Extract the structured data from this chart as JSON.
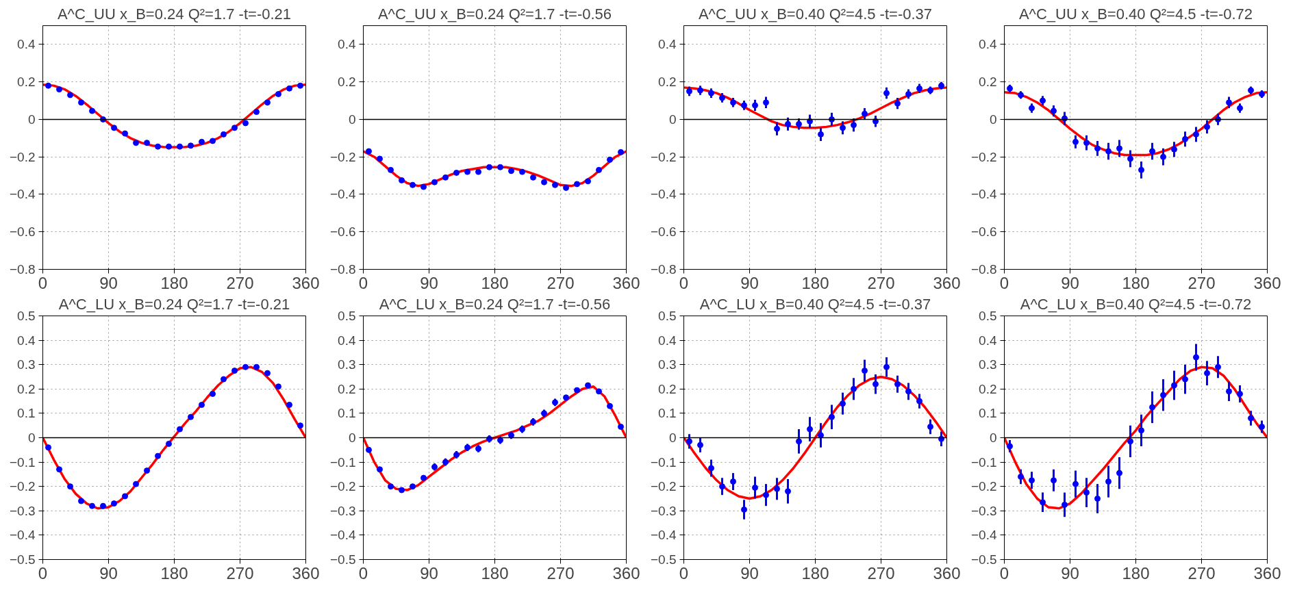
{
  "chart_data": [
    {
      "type": "scatter",
      "title": "A^C_UU x_B=0.24 Q²=1.7 -t=-0.21",
      "xlim": [
        0,
        360
      ],
      "ylim": [
        -0.8,
        0.5
      ],
      "xticks": [
        0,
        90,
        180,
        270,
        360
      ],
      "yticks": [
        -0.8,
        -0.6,
        -0.4,
        -0.2,
        0,
        0.2,
        0.4
      ],
      "grid": true,
      "marker": "circle",
      "line_style": "solid",
      "ref_lines": [
        {
          "axis": "y",
          "value": 0,
          "color": "#000000"
        }
      ],
      "series": [
        {
          "type": "scatter",
          "color": "#0000ff",
          "x": [
            7.5,
            22.5,
            37.5,
            52.5,
            67.5,
            82.5,
            97.5,
            112.5,
            127.5,
            142.5,
            157.5,
            172.5,
            187.5,
            202.5,
            217.5,
            232.5,
            247.5,
            262.5,
            277.5,
            292.5,
            307.5,
            322.5,
            337.5,
            352.5
          ],
          "values": [
            0.18,
            0.16,
            0.13,
            0.09,
            0.045,
            0.0,
            -0.045,
            -0.075,
            -0.125,
            -0.125,
            -0.145,
            -0.145,
            -0.145,
            -0.14,
            -0.12,
            -0.115,
            -0.08,
            -0.045,
            -0.02,
            0.04,
            0.09,
            0.135,
            0.165,
            0.18
          ],
          "errors": [
            0.005,
            0.005,
            0.005,
            0.005,
            0.005,
            0.005,
            0.005,
            0.005,
            0.005,
            0.005,
            0.005,
            0.005,
            0.005,
            0.005,
            0.005,
            0.005,
            0.005,
            0.005,
            0.005,
            0.005,
            0.005,
            0.005,
            0.005,
            0.005
          ]
        },
        {
          "type": "line",
          "color": "#ff0000",
          "x": [
            0,
            15,
            30,
            45,
            60,
            75,
            90,
            105,
            120,
            135,
            150,
            165,
            180,
            195,
            210,
            225,
            240,
            255,
            270,
            285,
            300,
            315,
            330,
            345,
            360
          ],
          "marker": "none",
          "values": [
            0.185,
            0.18,
            0.16,
            0.125,
            0.08,
            0.03,
            -0.02,
            -0.065,
            -0.1,
            -0.125,
            -0.14,
            -0.147,
            -0.148,
            -0.147,
            -0.14,
            -0.125,
            -0.1,
            -0.065,
            -0.02,
            0.03,
            0.08,
            0.125,
            0.16,
            0.18,
            0.185
          ]
        }
      ]
    },
    {
      "type": "scatter",
      "title": "A^C_UU x_B=0.24 Q²=1.7 -t=-0.56",
      "xlim": [
        0,
        360
      ],
      "ylim": [
        -0.8,
        0.5
      ],
      "xticks": [
        0,
        90,
        180,
        270,
        360
      ],
      "yticks": [
        -0.8,
        -0.6,
        -0.4,
        -0.2,
        0,
        0.2,
        0.4
      ],
      "grid": true,
      "marker": "circle",
      "line_style": "solid",
      "ref_lines": [
        {
          "axis": "y",
          "value": 0,
          "color": "#000000"
        }
      ],
      "series": [
        {
          "type": "scatter",
          "color": "#0000ff",
          "x": [
            7.5,
            22.5,
            37.5,
            52.5,
            67.5,
            82.5,
            97.5,
            112.5,
            127.5,
            142.5,
            157.5,
            172.5,
            187.5,
            202.5,
            217.5,
            232.5,
            247.5,
            262.5,
            277.5,
            292.5,
            307.5,
            322.5,
            337.5,
            352.5
          ],
          "values": [
            -0.17,
            -0.21,
            -0.27,
            -0.325,
            -0.35,
            -0.36,
            -0.335,
            -0.31,
            -0.285,
            -0.28,
            -0.28,
            -0.255,
            -0.255,
            -0.275,
            -0.28,
            -0.31,
            -0.335,
            -0.35,
            -0.365,
            -0.345,
            -0.33,
            -0.27,
            -0.215,
            -0.175
          ],
          "errors": [
            0.005,
            0.005,
            0.005,
            0.005,
            0.005,
            0.005,
            0.005,
            0.005,
            0.005,
            0.005,
            0.005,
            0.005,
            0.005,
            0.005,
            0.005,
            0.005,
            0.005,
            0.005,
            0.005,
            0.005,
            0.005,
            0.005,
            0.005,
            0.005
          ]
        },
        {
          "type": "line",
          "color": "#ff0000",
          "x": [
            0,
            15,
            30,
            45,
            60,
            75,
            90,
            105,
            120,
            135,
            150,
            165,
            180,
            195,
            210,
            225,
            240,
            255,
            270,
            285,
            300,
            315,
            330,
            345,
            360
          ],
          "marker": "none",
          "values": [
            -0.17,
            -0.2,
            -0.25,
            -0.3,
            -0.34,
            -0.355,
            -0.345,
            -0.32,
            -0.295,
            -0.275,
            -0.265,
            -0.255,
            -0.255,
            -0.255,
            -0.265,
            -0.28,
            -0.3,
            -0.325,
            -0.35,
            -0.355,
            -0.34,
            -0.3,
            -0.25,
            -0.2,
            -0.17
          ]
        }
      ]
    },
    {
      "type": "scatter",
      "title": "A^C_UU x_B=0.40 Q²=4.5 -t=-0.37",
      "xlim": [
        0,
        360
      ],
      "ylim": [
        -0.8,
        0.5
      ],
      "xticks": [
        0,
        90,
        180,
        270,
        360
      ],
      "yticks": [
        -0.8,
        -0.6,
        -0.4,
        -0.2,
        0,
        0.2,
        0.4
      ],
      "grid": true,
      "marker": "circle",
      "line_style": "solid",
      "ref_lines": [
        {
          "axis": "y",
          "value": 0,
          "color": "#000000"
        }
      ],
      "series": [
        {
          "type": "scatter",
          "color": "#0000ff",
          "x": [
            7.5,
            22.5,
            37.5,
            52.5,
            67.5,
            82.5,
            97.5,
            112.5,
            127.5,
            142.5,
            157.5,
            172.5,
            187.5,
            202.5,
            217.5,
            232.5,
            247.5,
            262.5,
            277.5,
            292.5,
            307.5,
            322.5,
            337.5,
            352.5
          ],
          "values": [
            0.15,
            0.155,
            0.14,
            0.115,
            0.09,
            0.075,
            0.075,
            0.09,
            -0.05,
            -0.025,
            -0.025,
            -0.01,
            -0.08,
            0.0,
            -0.045,
            -0.03,
            0.03,
            -0.01,
            0.14,
            0.085,
            0.135,
            0.165,
            0.155,
            0.18
          ],
          "errors": [
            0.025,
            0.025,
            0.025,
            0.025,
            0.025,
            0.025,
            0.03,
            0.03,
            0.035,
            0.035,
            0.03,
            0.035,
            0.035,
            0.035,
            0.035,
            0.035,
            0.03,
            0.03,
            0.03,
            0.03,
            0.025,
            0.025,
            0.02,
            0.02
          ]
        },
        {
          "type": "line",
          "color": "#ff0000",
          "x": [
            0,
            15,
            30,
            45,
            60,
            75,
            90,
            105,
            120,
            135,
            150,
            165,
            180,
            195,
            210,
            225,
            240,
            255,
            270,
            285,
            300,
            315,
            330,
            345,
            360
          ],
          "marker": "none",
          "values": [
            0.17,
            0.165,
            0.155,
            0.14,
            0.115,
            0.085,
            0.05,
            0.02,
            -0.01,
            -0.03,
            -0.04,
            -0.045,
            -0.045,
            -0.04,
            -0.03,
            -0.015,
            0.005,
            0.03,
            0.06,
            0.09,
            0.115,
            0.14,
            0.155,
            0.165,
            0.17
          ]
        }
      ]
    },
    {
      "type": "scatter",
      "title": "A^C_UU x_B=0.40 Q²=4.5 -t=-0.72",
      "xlim": [
        0,
        360
      ],
      "ylim": [
        -0.8,
        0.5
      ],
      "xticks": [
        0,
        90,
        180,
        270,
        360
      ],
      "yticks": [
        -0.8,
        -0.6,
        -0.4,
        -0.2,
        0,
        0.2,
        0.4
      ],
      "grid": true,
      "marker": "circle",
      "line_style": "solid",
      "ref_lines": [
        {
          "axis": "y",
          "value": 0,
          "color": "#000000"
        }
      ],
      "series": [
        {
          "type": "scatter",
          "color": "#0000ff",
          "x": [
            7.5,
            22.5,
            37.5,
            52.5,
            67.5,
            82.5,
            97.5,
            112.5,
            127.5,
            142.5,
            157.5,
            172.5,
            187.5,
            202.5,
            217.5,
            232.5,
            247.5,
            262.5,
            277.5,
            292.5,
            307.5,
            322.5,
            337.5,
            352.5
          ],
          "values": [
            0.165,
            0.13,
            0.06,
            0.1,
            0.045,
            0.005,
            -0.12,
            -0.125,
            -0.155,
            -0.17,
            -0.155,
            -0.21,
            -0.27,
            -0.17,
            -0.2,
            -0.16,
            -0.105,
            -0.08,
            -0.04,
            0.0,
            0.09,
            0.06,
            0.155,
            0.135
          ],
          "errors": [
            0.02,
            0.02,
            0.025,
            0.025,
            0.03,
            0.035,
            0.035,
            0.04,
            0.04,
            0.045,
            0.045,
            0.045,
            0.045,
            0.045,
            0.045,
            0.04,
            0.04,
            0.04,
            0.035,
            0.03,
            0.03,
            0.025,
            0.02,
            0.02
          ]
        },
        {
          "type": "line",
          "color": "#ff0000",
          "x": [
            0,
            15,
            30,
            45,
            60,
            75,
            90,
            105,
            120,
            135,
            150,
            165,
            180,
            195,
            210,
            225,
            240,
            255,
            270,
            285,
            300,
            315,
            330,
            345,
            360
          ],
          "marker": "none",
          "values": [
            0.145,
            0.14,
            0.12,
            0.09,
            0.05,
            0.0,
            -0.05,
            -0.095,
            -0.135,
            -0.16,
            -0.18,
            -0.19,
            -0.19,
            -0.19,
            -0.18,
            -0.16,
            -0.13,
            -0.09,
            -0.05,
            0.0,
            0.05,
            0.09,
            0.12,
            0.14,
            0.145
          ]
        }
      ]
    },
    {
      "type": "scatter",
      "title": "A^C_LU x_B=0.24 Q²=1.7 -t=-0.21",
      "xlim": [
        0,
        360
      ],
      "ylim": [
        -0.5,
        0.5
      ],
      "xticks": [
        0,
        90,
        180,
        270,
        360
      ],
      "yticks": [
        -0.5,
        -0.4,
        -0.3,
        -0.2,
        -0.1,
        0,
        0.1,
        0.2,
        0.3,
        0.4,
        0.5
      ],
      "grid": true,
      "marker": "circle",
      "line_style": "solid",
      "ref_lines": [
        {
          "axis": "y",
          "value": 0,
          "color": "#000000"
        }
      ],
      "series": [
        {
          "type": "scatter",
          "color": "#0000ff",
          "x": [
            7.5,
            22.5,
            37.5,
            52.5,
            67.5,
            82.5,
            97.5,
            112.5,
            127.5,
            142.5,
            157.5,
            172.5,
            187.5,
            202.5,
            217.5,
            232.5,
            247.5,
            262.5,
            277.5,
            292.5,
            307.5,
            322.5,
            337.5,
            352.5
          ],
          "values": [
            -0.04,
            -0.13,
            -0.2,
            -0.26,
            -0.28,
            -0.28,
            -0.27,
            -0.24,
            -0.19,
            -0.135,
            -0.075,
            -0.025,
            0.035,
            0.085,
            0.135,
            0.18,
            0.24,
            0.275,
            0.29,
            0.29,
            0.265,
            0.21,
            0.135,
            0.05
          ],
          "errors": [
            0.005,
            0.005,
            0.005,
            0.005,
            0.005,
            0.005,
            0.005,
            0.005,
            0.005,
            0.005,
            0.005,
            0.005,
            0.005,
            0.005,
            0.005,
            0.005,
            0.005,
            0.005,
            0.005,
            0.005,
            0.005,
            0.005,
            0.005,
            0.005
          ]
        },
        {
          "type": "line",
          "color": "#ff0000",
          "x": [
            0,
            15,
            30,
            45,
            60,
            75,
            90,
            105,
            120,
            135,
            150,
            165,
            180,
            195,
            210,
            225,
            240,
            255,
            270,
            285,
            300,
            315,
            330,
            345,
            360
          ],
          "marker": "none",
          "values": [
            0,
            -0.09,
            -0.17,
            -0.23,
            -0.27,
            -0.29,
            -0.285,
            -0.26,
            -0.22,
            -0.165,
            -0.11,
            -0.05,
            0.005,
            0.06,
            0.11,
            0.165,
            0.215,
            0.255,
            0.285,
            0.29,
            0.27,
            0.225,
            0.155,
            0.075,
            0
          ]
        }
      ]
    },
    {
      "type": "scatter",
      "title": "A^C_LU x_B=0.24 Q²=1.7 -t=-0.56",
      "xlim": [
        0,
        360
      ],
      "ylim": [
        -0.5,
        0.5
      ],
      "xticks": [
        0,
        90,
        180,
        270,
        360
      ],
      "yticks": [
        -0.5,
        -0.4,
        -0.3,
        -0.2,
        -0.1,
        0,
        0.1,
        0.2,
        0.3,
        0.4,
        0.5
      ],
      "grid": true,
      "marker": "circle",
      "line_style": "solid",
      "ref_lines": [
        {
          "axis": "y",
          "value": 0,
          "color": "#000000"
        }
      ],
      "series": [
        {
          "type": "scatter",
          "color": "#0000ff",
          "x": [
            7.5,
            22.5,
            37.5,
            52.5,
            67.5,
            82.5,
            97.5,
            112.5,
            127.5,
            142.5,
            157.5,
            172.5,
            187.5,
            202.5,
            217.5,
            232.5,
            247.5,
            262.5,
            277.5,
            292.5,
            307.5,
            322.5,
            337.5,
            352.5
          ],
          "values": [
            -0.05,
            -0.13,
            -0.2,
            -0.215,
            -0.2,
            -0.165,
            -0.12,
            -0.1,
            -0.07,
            -0.04,
            -0.045,
            -0.005,
            -0.01,
            0.01,
            0.035,
            0.065,
            0.1,
            0.145,
            0.165,
            0.195,
            0.215,
            0.19,
            0.13,
            0.045
          ],
          "errors": [
            0.01,
            0.01,
            0.01,
            0.01,
            0.01,
            0.01,
            0.015,
            0.015,
            0.015,
            0.015,
            0.015,
            0.015,
            0.015,
            0.015,
            0.015,
            0.015,
            0.015,
            0.015,
            0.01,
            0.01,
            0.01,
            0.01,
            0.01,
            0.01
          ]
        },
        {
          "type": "line",
          "color": "#ff0000",
          "x": [
            0,
            15,
            30,
            45,
            60,
            75,
            90,
            105,
            120,
            135,
            150,
            165,
            180,
            195,
            210,
            225,
            240,
            255,
            270,
            285,
            300,
            315,
            330,
            345,
            360
          ],
          "marker": "none",
          "values": [
            0,
            -0.1,
            -0.175,
            -0.21,
            -0.215,
            -0.195,
            -0.16,
            -0.125,
            -0.09,
            -0.06,
            -0.035,
            -0.015,
            0.0,
            0.015,
            0.03,
            0.05,
            0.07,
            0.1,
            0.135,
            0.17,
            0.2,
            0.21,
            0.17,
            0.09,
            0
          ]
        }
      ]
    },
    {
      "type": "scatter",
      "title": "A^C_LU x_B=0.40 Q²=4.5 -t=-0.37",
      "xlim": [
        0,
        360
      ],
      "ylim": [
        -0.5,
        0.5
      ],
      "xticks": [
        0,
        90,
        180,
        270,
        360
      ],
      "yticks": [
        -0.5,
        -0.4,
        -0.3,
        -0.2,
        -0.1,
        0,
        0.1,
        0.2,
        0.3,
        0.4,
        0.5
      ],
      "grid": true,
      "marker": "circle",
      "line_style": "solid",
      "ref_lines": [
        {
          "axis": "y",
          "value": 0,
          "color": "#000000"
        }
      ],
      "series": [
        {
          "type": "scatter",
          "color": "#0000ff",
          "x": [
            7.5,
            22.5,
            37.5,
            52.5,
            67.5,
            82.5,
            97.5,
            112.5,
            127.5,
            142.5,
            157.5,
            172.5,
            187.5,
            202.5,
            217.5,
            232.5,
            247.5,
            262.5,
            277.5,
            292.5,
            307.5,
            322.5,
            337.5,
            352.5
          ],
          "values": [
            -0.015,
            -0.03,
            -0.125,
            -0.2,
            -0.18,
            -0.295,
            -0.205,
            -0.235,
            -0.21,
            -0.22,
            -0.015,
            0.035,
            0.01,
            0.085,
            0.14,
            0.2,
            0.275,
            0.22,
            0.29,
            0.22,
            0.19,
            0.15,
            0.045,
            -0.005
          ],
          "errors": [
            0.03,
            0.03,
            0.035,
            0.035,
            0.035,
            0.04,
            0.045,
            0.045,
            0.045,
            0.05,
            0.05,
            0.05,
            0.05,
            0.05,
            0.045,
            0.045,
            0.045,
            0.04,
            0.04,
            0.035,
            0.035,
            0.03,
            0.03,
            0.03
          ]
        },
        {
          "type": "line",
          "color": "#ff0000",
          "x": [
            0,
            15,
            30,
            45,
            60,
            75,
            90,
            105,
            120,
            135,
            150,
            165,
            180,
            195,
            210,
            225,
            240,
            255,
            270,
            285,
            300,
            315,
            330,
            345,
            360
          ],
          "marker": "none",
          "values": [
            0,
            -0.065,
            -0.125,
            -0.175,
            -0.215,
            -0.24,
            -0.25,
            -0.24,
            -0.215,
            -0.175,
            -0.125,
            -0.065,
            0,
            0.065,
            0.125,
            0.175,
            0.215,
            0.24,
            0.25,
            0.24,
            0.215,
            0.175,
            0.125,
            0.065,
            0
          ]
        }
      ]
    },
    {
      "type": "scatter",
      "title": "A^C_LU x_B=0.40 Q²=4.5 -t=-0.72",
      "xlim": [
        0,
        360
      ],
      "ylim": [
        -0.5,
        0.5
      ],
      "xticks": [
        0,
        90,
        180,
        270,
        360
      ],
      "yticks": [
        -0.5,
        -0.4,
        -0.3,
        -0.2,
        -0.1,
        0,
        0.1,
        0.2,
        0.3,
        0.4,
        0.5
      ],
      "grid": true,
      "marker": "circle",
      "line_style": "solid",
      "ref_lines": [
        {
          "axis": "y",
          "value": 0,
          "color": "#000000"
        }
      ],
      "series": [
        {
          "type": "scatter",
          "color": "#0000ff",
          "x": [
            7.5,
            22.5,
            37.5,
            52.5,
            67.5,
            82.5,
            97.5,
            112.5,
            127.5,
            142.5,
            157.5,
            172.5,
            187.5,
            202.5,
            217.5,
            232.5,
            247.5,
            262.5,
            277.5,
            292.5,
            307.5,
            322.5,
            337.5,
            352.5
          ],
          "values": [
            -0.035,
            -0.16,
            -0.175,
            -0.265,
            -0.175,
            -0.275,
            -0.19,
            -0.225,
            -0.25,
            -0.18,
            -0.145,
            -0.015,
            0.03,
            0.125,
            0.175,
            0.215,
            0.24,
            0.33,
            0.265,
            0.29,
            0.19,
            0.18,
            0.08,
            0.045
          ],
          "errors": [
            0.025,
            0.03,
            0.035,
            0.04,
            0.045,
            0.05,
            0.055,
            0.06,
            0.06,
            0.065,
            0.065,
            0.065,
            0.065,
            0.065,
            0.065,
            0.06,
            0.06,
            0.055,
            0.05,
            0.045,
            0.04,
            0.035,
            0.03,
            0.025
          ]
        },
        {
          "type": "line",
          "color": "#ff0000",
          "x": [
            0,
            15,
            30,
            45,
            60,
            75,
            90,
            105,
            120,
            135,
            150,
            165,
            180,
            195,
            210,
            225,
            240,
            255,
            270,
            285,
            300,
            315,
            330,
            345,
            360
          ],
          "marker": "none",
          "values": [
            0,
            -0.1,
            -0.19,
            -0.25,
            -0.285,
            -0.29,
            -0.27,
            -0.23,
            -0.18,
            -0.13,
            -0.075,
            -0.02,
            0.03,
            0.09,
            0.14,
            0.19,
            0.24,
            0.275,
            0.29,
            0.285,
            0.255,
            0.2,
            0.13,
            0.06,
            0
          ]
        }
      ]
    }
  ]
}
